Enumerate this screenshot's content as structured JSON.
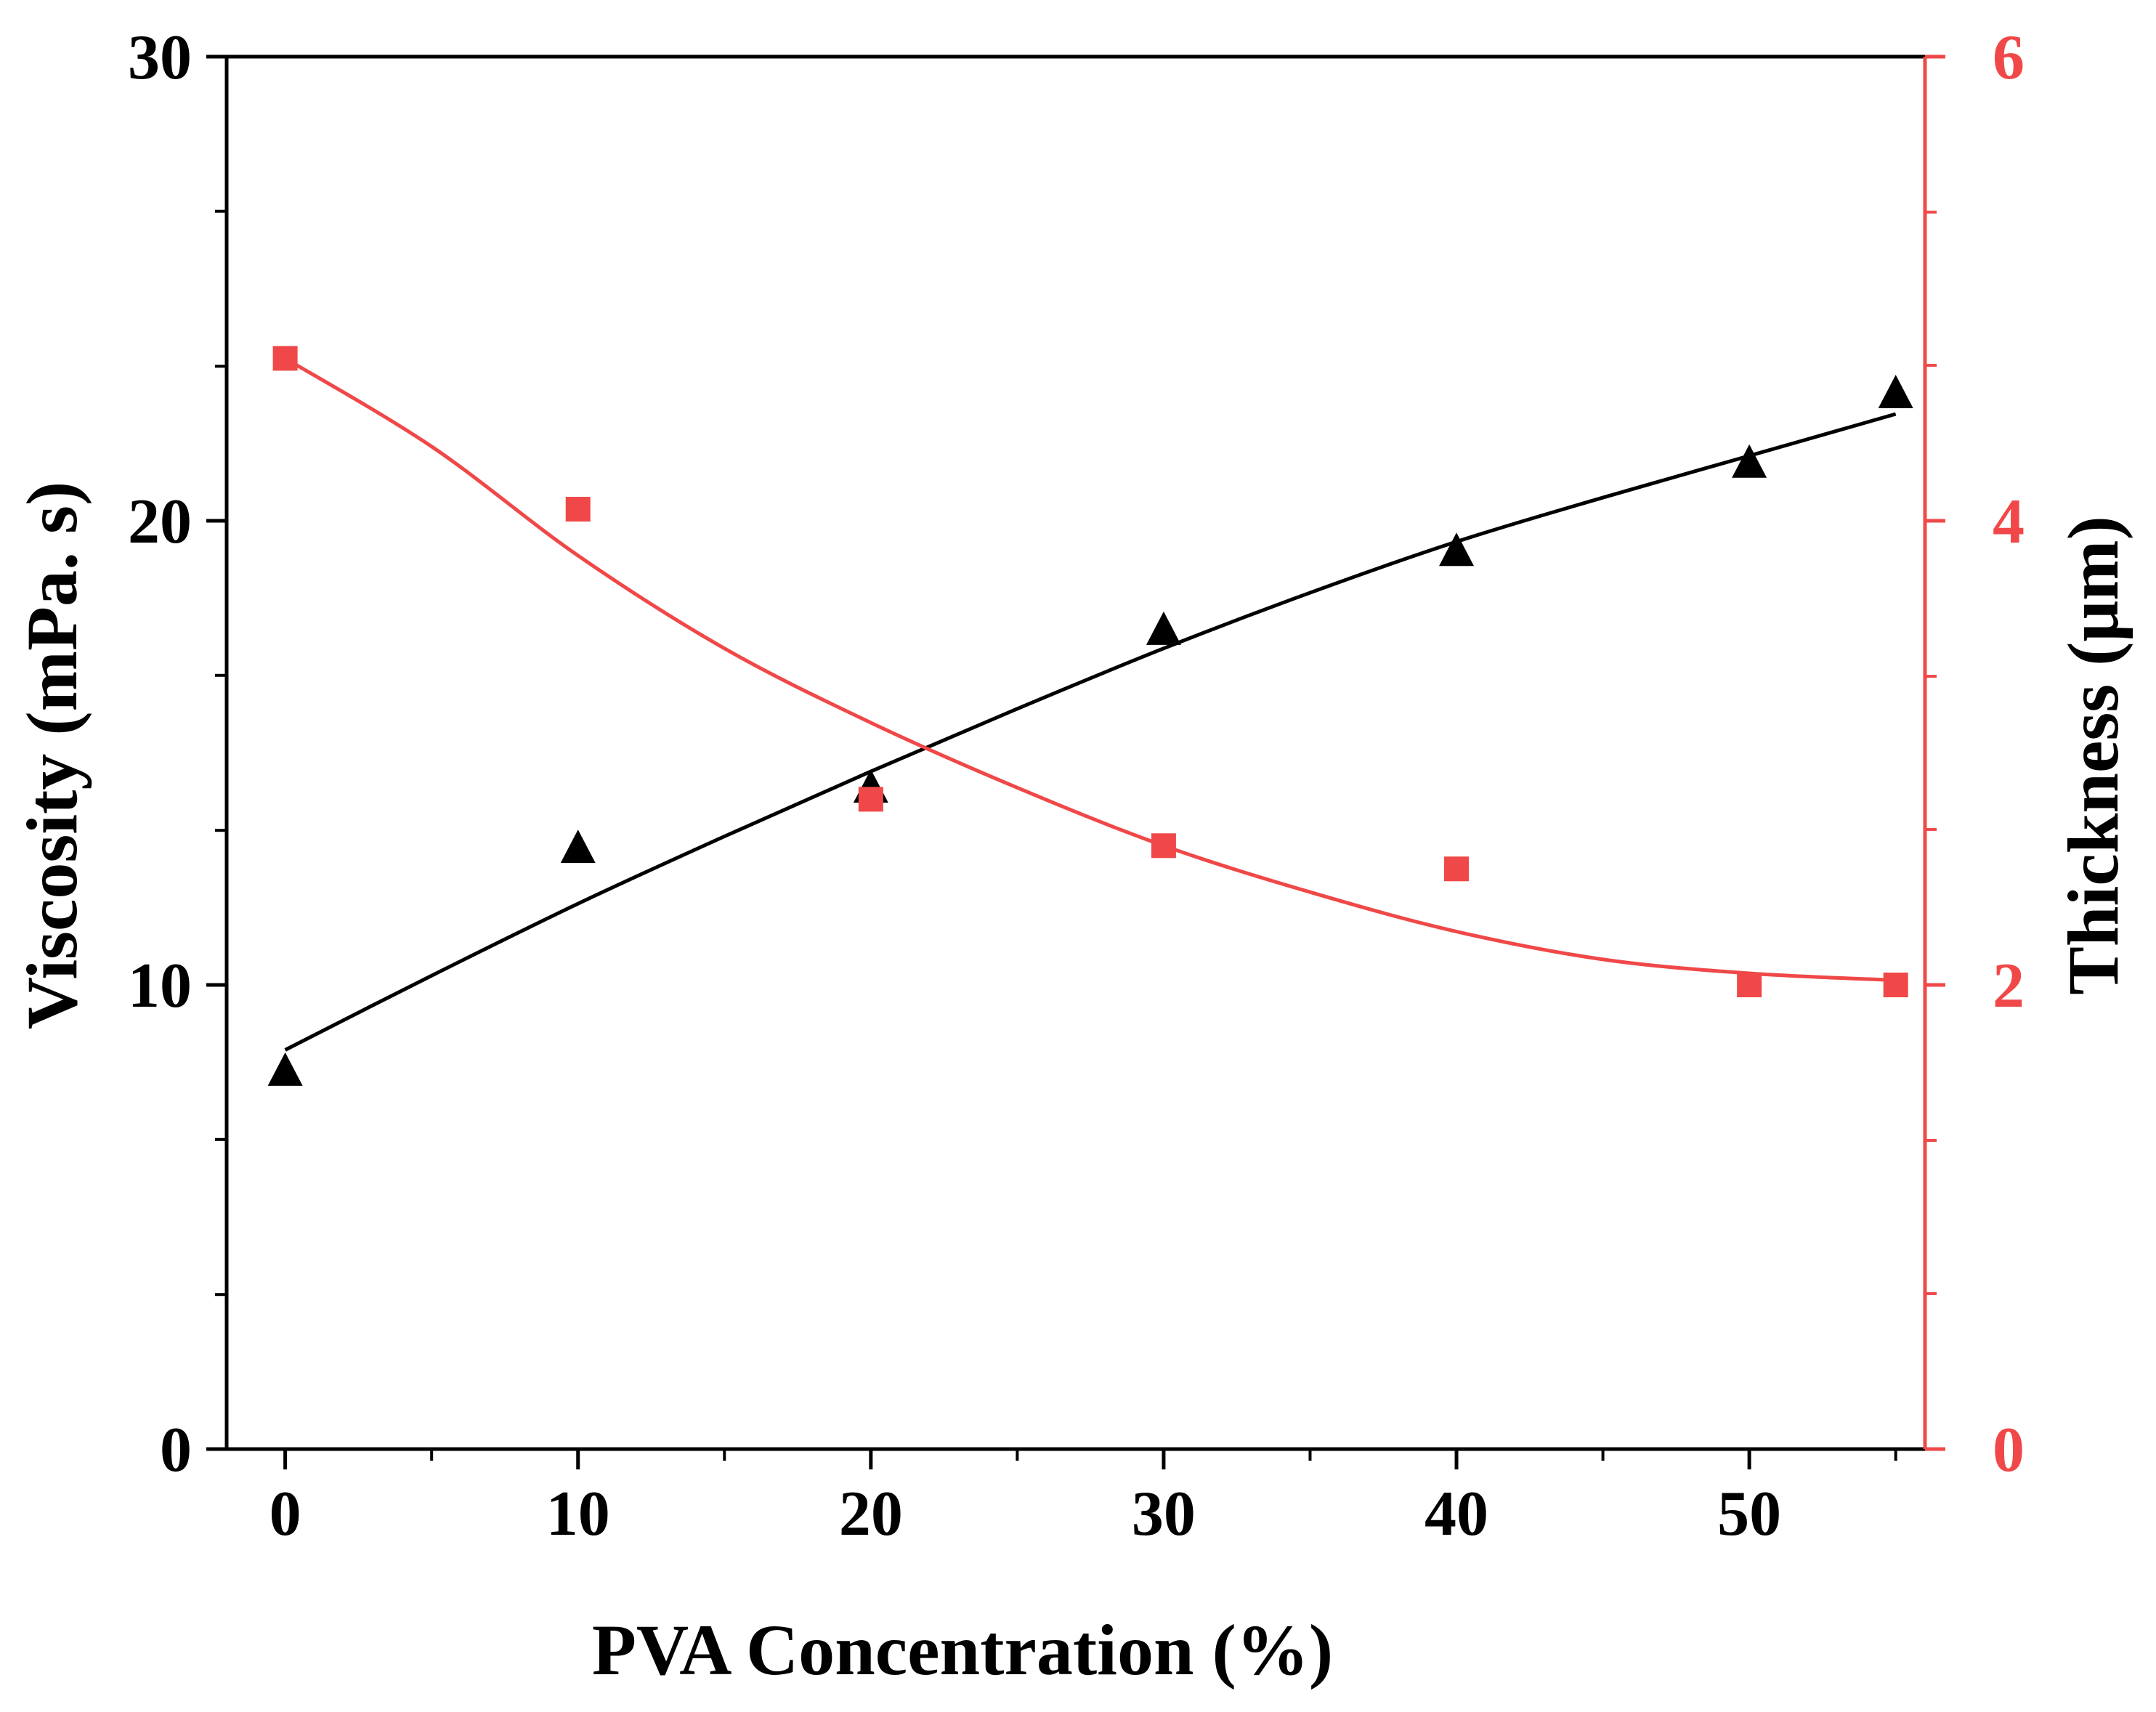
{
  "chart_data": {
    "type": "scatter",
    "x_axis": {
      "label": "PVA Concentration (%)",
      "range": [
        -2,
        56
      ],
      "ticks": [
        0,
        10,
        20,
        30,
        40,
        50
      ],
      "tick_labels": [
        "0",
        "10",
        "20",
        "30",
        "40",
        "50"
      ],
      "minor_ticks": [
        5,
        15,
        25,
        35,
        45,
        55
      ]
    },
    "y_left": {
      "label": "Viscosity (mPa. s)",
      "range": [
        0,
        30
      ],
      "ticks": [
        0,
        10,
        20,
        30
      ],
      "tick_labels": [
        "0",
        "10",
        "20",
        "30"
      ],
      "minor_ticks": [
        3.33,
        6.67,
        13.33,
        16.67,
        23.33,
        26.67
      ],
      "color": "#000000"
    },
    "y_right": {
      "label": "Thickness (μm)",
      "range": [
        0,
        6
      ],
      "ticks": [
        0,
        2,
        4,
        6
      ],
      "tick_labels": [
        "0",
        "2",
        "4",
        "6"
      ],
      "minor_ticks": [
        0.67,
        1.33,
        2.67,
        3.33,
        4.67,
        5.33
      ],
      "color": "#f04848"
    },
    "series": [
      {
        "axis": "left",
        "marker": "triangle",
        "color": "#000000",
        "points": [
          {
            "x": 0,
            "y": 8.1
          },
          {
            "x": 10,
            "y": 12.9
          },
          {
            "x": 20,
            "y": 14.2
          },
          {
            "x": 30,
            "y": 17.6
          },
          {
            "x": 40,
            "y": 19.3
          },
          {
            "x": 50,
            "y": 21.2
          },
          {
            "x": 55,
            "y": 22.7
          }
        ],
        "fit": [
          {
            "x": 0,
            "y": 8.6
          },
          {
            "x": 5,
            "y": 10.2
          },
          {
            "x": 10,
            "y": 11.75
          },
          {
            "x": 15,
            "y": 13.2
          },
          {
            "x": 20,
            "y": 14.6
          },
          {
            "x": 25,
            "y": 15.95
          },
          {
            "x": 30,
            "y": 17.25
          },
          {
            "x": 35,
            "y": 18.45
          },
          {
            "x": 40,
            "y": 19.55
          },
          {
            "x": 45,
            "y": 20.5
          },
          {
            "x": 50,
            "y": 21.4
          },
          {
            "x": 55,
            "y": 22.3
          }
        ]
      },
      {
        "axis": "right",
        "marker": "square",
        "color": "#f04848",
        "points": [
          {
            "x": 0,
            "y": 4.7
          },
          {
            "x": 10,
            "y": 4.05
          },
          {
            "x": 20,
            "y": 2.8
          },
          {
            "x": 30,
            "y": 2.6
          },
          {
            "x": 40,
            "y": 2.5
          },
          {
            "x": 50,
            "y": 2.0
          },
          {
            "x": 55,
            "y": 2.0
          }
        ],
        "fit": [
          {
            "x": 0,
            "y": 4.7
          },
          {
            "x": 5,
            "y": 4.32
          },
          {
            "x": 10,
            "y": 3.85
          },
          {
            "x": 15,
            "y": 3.45
          },
          {
            "x": 20,
            "y": 3.13
          },
          {
            "x": 25,
            "y": 2.85
          },
          {
            "x": 30,
            "y": 2.6
          },
          {
            "x": 35,
            "y": 2.4
          },
          {
            "x": 40,
            "y": 2.23
          },
          {
            "x": 45,
            "y": 2.11
          },
          {
            "x": 50,
            "y": 2.05
          },
          {
            "x": 55,
            "y": 2.02
          }
        ]
      }
    ],
    "grid": false,
    "legend": "none"
  }
}
